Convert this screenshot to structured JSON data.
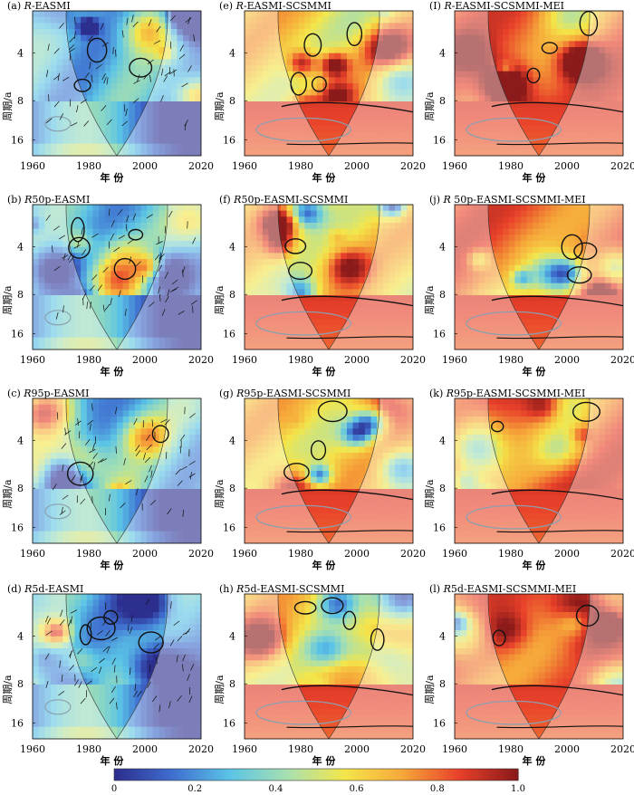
{
  "figure": {
    "colorbar": {
      "ticks": [
        "0",
        "0.2",
        "0.4",
        "0.6",
        "0.8",
        "1.0"
      ],
      "colors": [
        "#2d2f8f",
        "#3f6fd0",
        "#5bc4e6",
        "#a8e0b0",
        "#f4e64a",
        "#f6a83a",
        "#e8402a",
        "#8b1a1a"
      ]
    },
    "axis_labels": {
      "x": "年 份",
      "y": "周期/a"
    },
    "x_ticks": [
      "1960",
      "1980",
      "2000",
      "2020"
    ],
    "y_ticks": [
      "4",
      "8",
      "16"
    ]
  },
  "chart_data": [
    {
      "id": "a",
      "label": "(a) R-EASMI",
      "prefix": "(a) ",
      "italic": "R",
      "suffix": "-EASMI",
      "type": "heatmap",
      "x_range": [
        1960,
        2020
      ],
      "y_ticks": [
        4,
        8,
        16
      ],
      "col": 0,
      "row": 0,
      "arrows": true,
      "theme": "low"
    },
    {
      "id": "e",
      "label": "(e) R-EASMI-SCSMMI",
      "prefix": "(e) ",
      "italic": "R",
      "suffix": "-EASMI-SCSMMI",
      "type": "heatmap",
      "x_range": [
        1960,
        2020
      ],
      "y_ticks": [
        4,
        8,
        16
      ],
      "col": 1,
      "row": 0,
      "arrows": false,
      "theme": "high"
    },
    {
      "id": "i",
      "label": "(I) R-EASMI-SCSMMI-MEI",
      "prefix": "(I) ",
      "italic": "R",
      "suffix": "-EASMI-SCSMMI-MEI",
      "type": "heatmap",
      "x_range": [
        1960,
        2020
      ],
      "y_ticks": [
        4,
        8,
        16
      ],
      "col": 2,
      "row": 0,
      "arrows": false,
      "theme": "higher"
    },
    {
      "id": "b",
      "label": "(b) R50p-EASMI",
      "prefix": "(b) ",
      "italic": "R",
      "suffix": "50p-EASMI",
      "type": "heatmap",
      "x_range": [
        1960,
        2020
      ],
      "y_ticks": [
        4,
        8,
        16
      ],
      "col": 0,
      "row": 1,
      "arrows": true,
      "theme": "low"
    },
    {
      "id": "f",
      "label": "(f) R50p-EASMI-SCSMMI",
      "prefix": "(f) ",
      "italic": "R",
      "suffix": "50p-EASMI-SCSMMI",
      "type": "heatmap",
      "x_range": [
        1960,
        2020
      ],
      "y_ticks": [
        4,
        8,
        16
      ],
      "col": 1,
      "row": 1,
      "arrows": false,
      "theme": "high"
    },
    {
      "id": "j",
      "label": "(j) R 50p-EASMI-SCSMMI-MEI",
      "prefix": "(j) ",
      "italic": "R",
      "suffix": " 50p-EASMI-SCSMMI-MEI",
      "type": "heatmap",
      "x_range": [
        1960,
        2020
      ],
      "y_ticks": [
        4,
        8,
        16
      ],
      "col": 2,
      "row": 1,
      "arrows": false,
      "theme": "higher"
    },
    {
      "id": "c",
      "label": "(c) R95p-EASMI",
      "prefix": "(c) ",
      "italic": "R",
      "suffix": "95p-EASMI",
      "type": "heatmap",
      "x_range": [
        1960,
        2020
      ],
      "y_ticks": [
        4,
        8,
        16
      ],
      "col": 0,
      "row": 2,
      "arrows": true,
      "theme": "low"
    },
    {
      "id": "g",
      "label": "(g) R95p-EASMI-SCSMMI",
      "prefix": "(g) ",
      "italic": "R",
      "suffix": "95p-EASMI-SCSMMI",
      "type": "heatmap",
      "x_range": [
        1960,
        2020
      ],
      "y_ticks": [
        4,
        8,
        16
      ],
      "col": 1,
      "row": 2,
      "arrows": false,
      "theme": "high"
    },
    {
      "id": "k",
      "label": "(k) R95p-EASMI-SCSMMI-MEI",
      "prefix": "(k) ",
      "italic": "R",
      "suffix": "95p-EASMI-SCSMMI-MEI",
      "type": "heatmap",
      "x_range": [
        1960,
        2020
      ],
      "y_ticks": [
        4,
        8,
        16
      ],
      "col": 2,
      "row": 2,
      "arrows": false,
      "theme": "higher"
    },
    {
      "id": "d",
      "label": "(d) R5d-EASMI",
      "prefix": "(d) ",
      "italic": "R",
      "suffix": "5d-EASMI",
      "type": "heatmap",
      "x_range": [
        1960,
        2020
      ],
      "y_ticks": [
        4,
        8,
        16
      ],
      "col": 0,
      "row": 3,
      "arrows": true,
      "theme": "low"
    },
    {
      "id": "h",
      "label": "(h) R5d-EASMI-SCSMMI",
      "prefix": "(h) ",
      "italic": "R",
      "suffix": "5d-EASMI-SCSMMI",
      "type": "heatmap",
      "x_range": [
        1960,
        2020
      ],
      "y_ticks": [
        4,
        8,
        16
      ],
      "col": 1,
      "row": 3,
      "arrows": false,
      "theme": "high"
    },
    {
      "id": "l",
      "label": "(l) R5d-EASMI-SCSMMI-MEI",
      "prefix": "(l) ",
      "italic": "R",
      "suffix": "5d-EASMI-SCSMMI-MEI",
      "type": "heatmap",
      "x_range": [
        1960,
        2020
      ],
      "y_ticks": [
        4,
        8,
        16
      ],
      "col": 2,
      "row": 3,
      "arrows": false,
      "theme": "higher"
    }
  ]
}
